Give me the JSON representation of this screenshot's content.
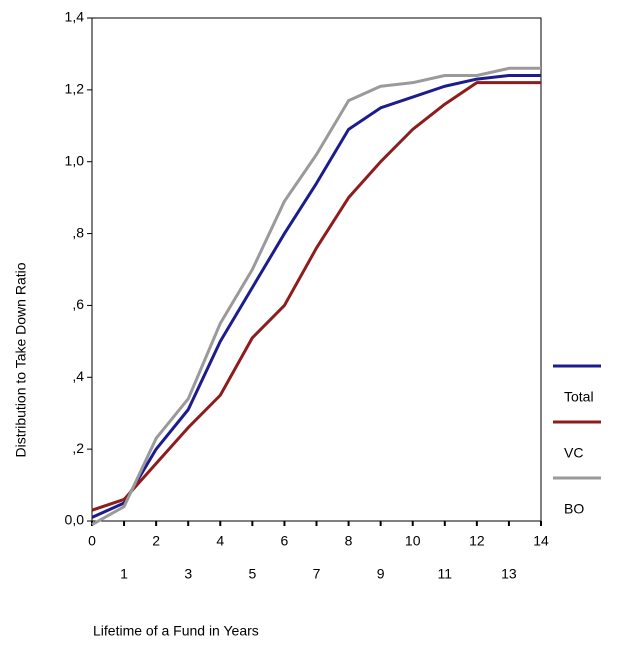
{
  "chart_data": {
    "type": "line",
    "x_label": "Lifetime of a Fund in Years",
    "y_label": "Distribution to Take Down Ratio",
    "x": [
      0,
      1,
      2,
      3,
      4,
      5,
      6,
      7,
      8,
      9,
      10,
      11,
      12,
      13,
      14
    ],
    "series": [
      {
        "name": "Total",
        "color": "#1c1c8e",
        "values": [
          0.01,
          0.05,
          0.2,
          0.31,
          0.5,
          0.65,
          0.8,
          0.94,
          1.09,
          1.15,
          1.18,
          1.21,
          1.23,
          1.24,
          1.24
        ]
      },
      {
        "name": "VC",
        "color": "#8e1c1c",
        "values": [
          0.03,
          0.06,
          0.16,
          0.26,
          0.35,
          0.51,
          0.6,
          0.76,
          0.9,
          1.0,
          1.09,
          1.16,
          1.22,
          1.22,
          1.22
        ]
      },
      {
        "name": "BO",
        "color": "#9a9a9a",
        "values": [
          -0.01,
          0.04,
          0.23,
          0.34,
          0.55,
          0.7,
          0.89,
          1.02,
          1.17,
          1.21,
          1.22,
          1.24,
          1.24,
          1.26,
          1.26
        ]
      }
    ],
    "xlim": [
      0,
      14
    ],
    "xticks": [
      0,
      1,
      2,
      3,
      4,
      5,
      6,
      7,
      8,
      9,
      10,
      11,
      12,
      13,
      14
    ],
    "ylim": [
      0,
      1.4
    ],
    "yticks": [
      {
        "value": 0,
        "label": "0,0"
      },
      {
        "value": 0.2,
        "label": ",2"
      },
      {
        "value": 0.4,
        "label": ",4"
      },
      {
        "value": 0.6,
        "label": ",6"
      },
      {
        "value": 0.8,
        "label": ",8"
      },
      {
        "value": 1.0,
        "label": "1,0"
      },
      {
        "value": 1.2,
        "label": "1,2"
      },
      {
        "value": 1.4,
        "label": "1,4"
      }
    ],
    "legend": "right"
  }
}
